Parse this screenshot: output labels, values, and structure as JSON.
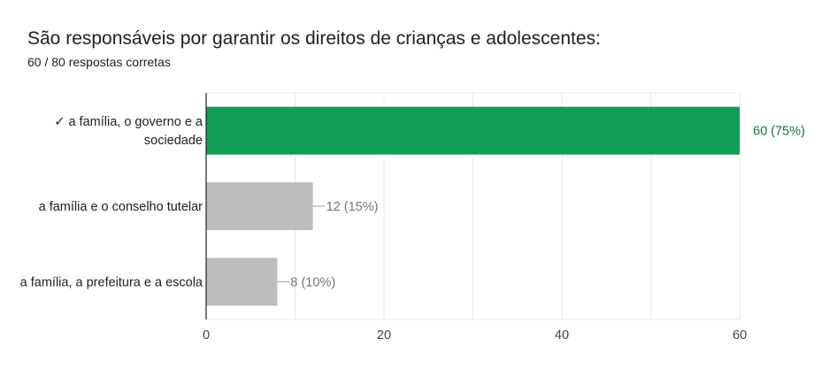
{
  "header": {
    "title": "São responsáveis por garantir os direitos de crianças e adolescentes:",
    "subtitle": "60 / 80 respostas corretas"
  },
  "colors": {
    "correct": "#0f9d58",
    "other": "#bdbdbd",
    "correct_label": "#137333",
    "other_label": "#757575",
    "grid": "#e8e8e8",
    "axis": "#202124"
  },
  "chart_data": {
    "type": "bar",
    "orientation": "horizontal",
    "categories": [
      "✓ a família, o governo e a sociedade",
      "a família e o conselho tutelar",
      "a família, a prefeitura e a escola"
    ],
    "category_lines": [
      [
        "✓ a família, o governo e a",
        "sociedade"
      ],
      [
        "a família e o conselho tutelar"
      ],
      [
        "a família, a prefeitura e a escola"
      ]
    ],
    "values": [
      60,
      12,
      8
    ],
    "data_labels": [
      "60 (75%)",
      "12 (15%)",
      "8 (10%)"
    ],
    "correct": [
      true,
      false,
      false
    ],
    "xlim": [
      0,
      60
    ],
    "xticks": [
      0,
      20,
      40,
      60
    ],
    "grid": true,
    "legend": "none"
  }
}
